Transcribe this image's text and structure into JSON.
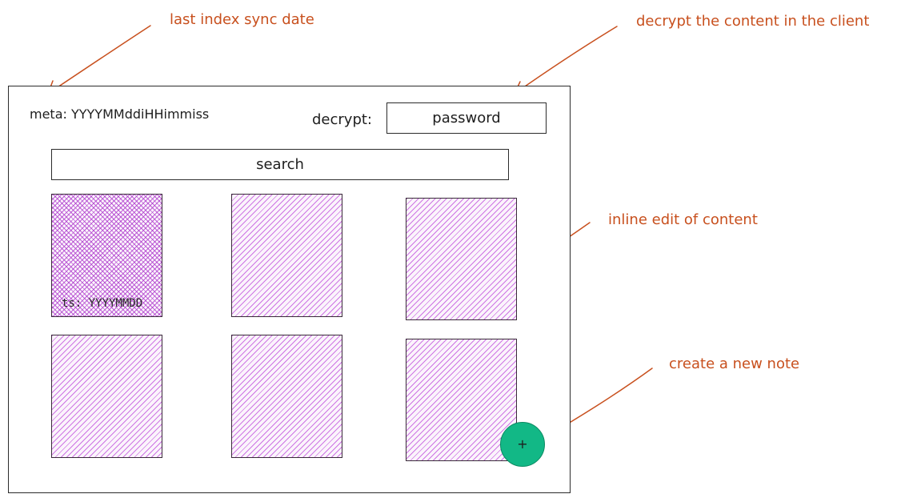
{
  "annotations": {
    "last_sync": "last index sync date",
    "decrypt_client": "decrypt the content in the client",
    "inline_edit": "inline edit of content",
    "create_note": "create a new note"
  },
  "header": {
    "meta_text": "meta: YYYYMMddiHHimmiss",
    "decrypt_label": "decrypt:",
    "password_placeholder": "password"
  },
  "search": {
    "placeholder": "search"
  },
  "notes": [
    {
      "ts": "ts: YYYYMMDD",
      "selected": true
    },
    {
      "ts": "",
      "selected": false
    },
    {
      "ts": "",
      "selected": false
    },
    {
      "ts": "",
      "selected": false
    },
    {
      "ts": "",
      "selected": false
    },
    {
      "ts": "",
      "selected": false
    }
  ],
  "fab": {
    "label": "+"
  },
  "colors": {
    "annotation": "#c8501e",
    "card_hatch": "#be4bdb",
    "fab": "#12b886",
    "stroke": "#1e1e1e"
  },
  "icons": {
    "fab_icon": "plus-icon"
  }
}
